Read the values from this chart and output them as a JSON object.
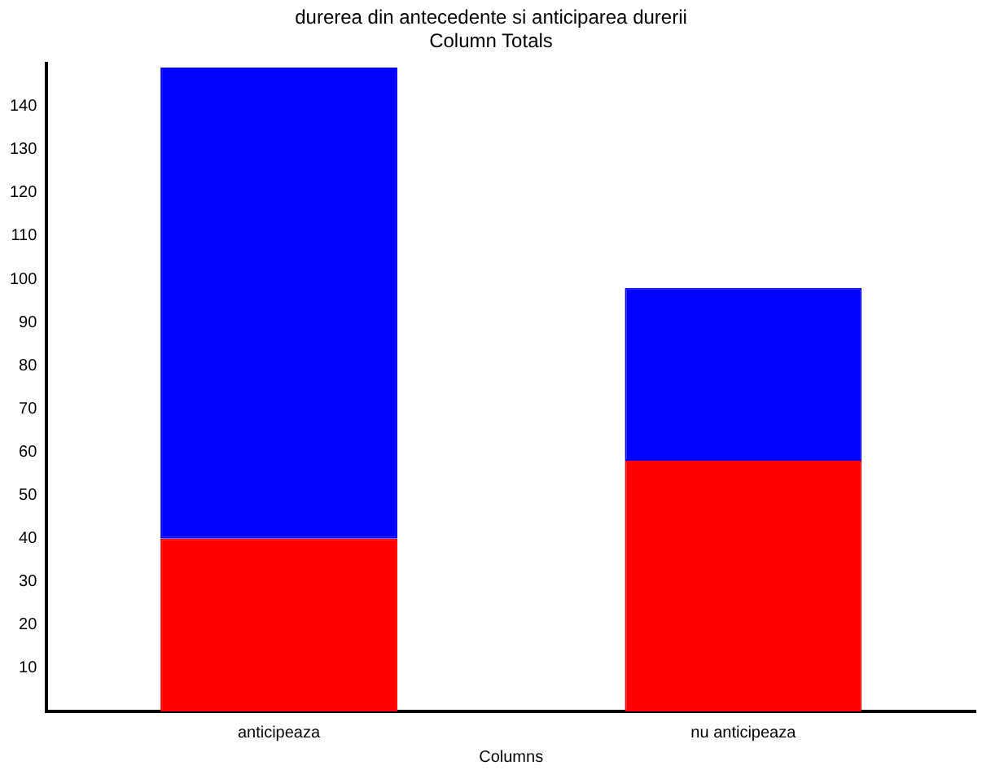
{
  "chart_data": {
    "type": "bar",
    "title": "durerea din antecedente si anticiparea durerii",
    "subtitle": "Column Totals",
    "xlabel": "Columns",
    "categories": [
      "anticipeaza",
      "nu anticipeaza"
    ],
    "stacked": true,
    "series": [
      {
        "color": "#ff0000",
        "values": [
          40,
          58
        ]
      },
      {
        "color": "#0000ff",
        "values": [
          109,
          40
        ]
      }
    ],
    "ylim": [
      0,
      150
    ],
    "yticks": [
      10,
      20,
      30,
      40,
      50,
      60,
      70,
      80,
      90,
      100,
      110,
      120,
      130,
      140
    ],
    "grid": false,
    "legend": false
  }
}
